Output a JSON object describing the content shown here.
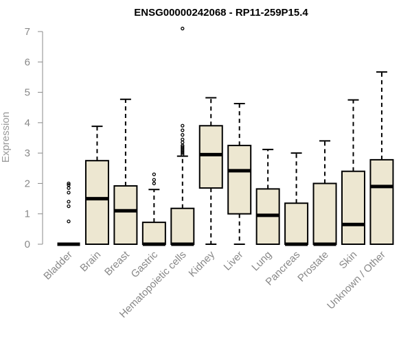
{
  "chart_data": {
    "type": "boxplot",
    "title": "ENSG00000242068 - RP11-259P15.4",
    "xlabel": "",
    "ylabel": "Expression",
    "ylim": [
      0,
      7
    ],
    "yticks": [
      "0",
      "1",
      "2",
      "3",
      "4",
      "5",
      "6",
      "7"
    ],
    "grid": false,
    "box_fill": "#ede7d1",
    "box_stroke": "#000000",
    "axis_color": "#888888",
    "categories": [
      "Bladder",
      "Brain",
      "Breast",
      "Gastric",
      "Hematopoietic cells",
      "Kidney",
      "Liver",
      "Lung",
      "Pancreas",
      "Prostate",
      "Skin",
      "Unknown / Other"
    ],
    "boxes": [
      {
        "name": "Bladder",
        "q1": 0,
        "median": 0,
        "q3": 0,
        "whisker_low": 0,
        "whisker_high": 0,
        "outliers": [
          0.75,
          1.25,
          1.4,
          1.7,
          1.85,
          1.95,
          2.0
        ]
      },
      {
        "name": "Brain",
        "q1": 0,
        "median": 1.5,
        "q3": 2.75,
        "whisker_low": 0,
        "whisker_high": 3.88,
        "outliers": []
      },
      {
        "name": "Breast",
        "q1": 0,
        "median": 1.1,
        "q3": 1.92,
        "whisker_low": 0,
        "whisker_high": 4.77,
        "outliers": []
      },
      {
        "name": "Gastric",
        "q1": 0,
        "median": 0,
        "q3": 0.72,
        "whisker_low": 0,
        "whisker_high": 1.8,
        "outliers": [
          2.0,
          2.12,
          2.3
        ]
      },
      {
        "name": "Hematopoietic cells",
        "q1": 0,
        "median": 0,
        "q3": 1.18,
        "whisker_low": 0,
        "whisker_high": 2.9,
        "outliers": [
          2.95,
          3.0,
          3.05,
          3.1,
          3.15,
          3.2,
          3.25,
          3.35,
          3.45,
          3.6,
          3.75,
          3.9,
          7.1
        ]
      },
      {
        "name": "Kidney",
        "q1": 1.85,
        "median": 2.95,
        "q3": 3.9,
        "whisker_low": 0,
        "whisker_high": 4.82,
        "outliers": []
      },
      {
        "name": "Liver",
        "q1": 1.0,
        "median": 2.42,
        "q3": 3.25,
        "whisker_low": 0,
        "whisker_high": 4.63,
        "outliers": []
      },
      {
        "name": "Lung",
        "q1": 0,
        "median": 0.95,
        "q3": 1.82,
        "whisker_low": 0,
        "whisker_high": 3.12,
        "outliers": []
      },
      {
        "name": "Pancreas",
        "q1": 0,
        "median": 0,
        "q3": 1.35,
        "whisker_low": 0,
        "whisker_high": 3.0,
        "outliers": []
      },
      {
        "name": "Prostate",
        "q1": 0,
        "median": 0,
        "q3": 2.0,
        "whisker_low": 0,
        "whisker_high": 3.4,
        "outliers": []
      },
      {
        "name": "Skin",
        "q1": 0,
        "median": 0.65,
        "q3": 2.4,
        "whisker_low": 0,
        "whisker_high": 4.75,
        "outliers": []
      },
      {
        "name": "Unknown / Other",
        "q1": 0,
        "median": 1.9,
        "q3": 2.78,
        "whisker_low": 0,
        "whisker_high": 5.67,
        "outliers": []
      }
    ]
  }
}
